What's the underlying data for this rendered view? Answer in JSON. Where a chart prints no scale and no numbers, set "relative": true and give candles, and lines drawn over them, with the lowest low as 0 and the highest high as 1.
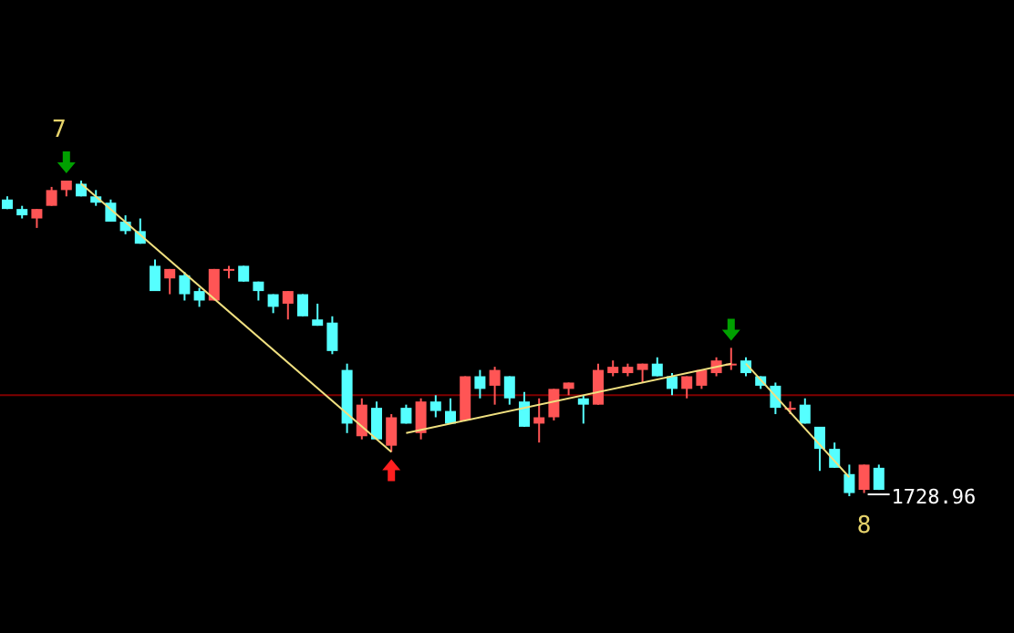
{
  "chart_data": {
    "type": "candlestick",
    "relative": true,
    "categories": [
      null,
      null,
      null,
      null,
      null,
      null,
      null,
      null,
      null,
      null,
      null,
      null,
      null,
      null,
      null,
      null,
      null,
      null,
      null,
      null,
      null,
      null,
      null,
      null,
      null,
      null,
      null,
      null,
      null,
      null,
      null,
      null,
      null,
      null,
      null,
      null,
      null,
      null,
      null,
      null,
      null,
      null,
      null,
      null,
      null,
      null,
      null,
      null,
      null,
      null,
      null,
      null,
      null,
      null,
      null,
      null,
      null,
      null,
      null,
      null
    ],
    "ohlc": [
      [
        0.94,
        0.95,
        0.91,
        0.91
      ],
      [
        0.91,
        0.92,
        0.88,
        0.89
      ],
      [
        0.88,
        0.91,
        0.85,
        0.91
      ],
      [
        0.92,
        0.98,
        0.92,
        0.97
      ],
      [
        0.97,
        1.0,
        0.95,
        1.0
      ],
      [
        0.99,
        1.0,
        0.95,
        0.95
      ],
      [
        0.95,
        0.97,
        0.92,
        0.93
      ],
      [
        0.93,
        0.94,
        0.87,
        0.87
      ],
      [
        0.87,
        0.89,
        0.83,
        0.84
      ],
      [
        0.84,
        0.88,
        0.8,
        0.8
      ],
      [
        0.73,
        0.75,
        0.65,
        0.65
      ],
      [
        0.69,
        0.72,
        0.64,
        0.72
      ],
      [
        0.7,
        0.71,
        0.62,
        0.64
      ],
      [
        0.65,
        0.66,
        0.6,
        0.62
      ],
      [
        0.62,
        0.72,
        0.62,
        0.72
      ],
      [
        0.72,
        0.73,
        0.69,
        0.72
      ],
      [
        0.73,
        0.73,
        0.68,
        0.68
      ],
      [
        0.68,
        0.68,
        0.62,
        0.65
      ],
      [
        0.64,
        0.64,
        0.58,
        0.6
      ],
      [
        0.61,
        0.65,
        0.56,
        0.65
      ],
      [
        0.64,
        0.64,
        0.57,
        0.57
      ],
      [
        0.56,
        0.61,
        0.54,
        0.54
      ],
      [
        0.55,
        0.57,
        0.45,
        0.46
      ],
      [
        0.4,
        0.42,
        0.2,
        0.23
      ],
      [
        0.19,
        0.31,
        0.18,
        0.29
      ],
      [
        0.28,
        0.3,
        0.18,
        0.18
      ],
      [
        0.16,
        0.26,
        0.14,
        0.25
      ],
      [
        0.28,
        0.29,
        0.23,
        0.23
      ],
      [
        0.2,
        0.31,
        0.18,
        0.3
      ],
      [
        0.3,
        0.32,
        0.25,
        0.27
      ],
      [
        0.27,
        0.31,
        0.23,
        0.23
      ],
      [
        0.24,
        0.38,
        0.24,
        0.38
      ],
      [
        0.38,
        0.4,
        0.31,
        0.34
      ],
      [
        0.35,
        0.41,
        0.29,
        0.4
      ],
      [
        0.38,
        0.38,
        0.29,
        0.31
      ],
      [
        0.3,
        0.33,
        0.22,
        0.22
      ],
      [
        0.23,
        0.31,
        0.17,
        0.25
      ],
      [
        0.25,
        0.34,
        0.24,
        0.34
      ],
      [
        0.34,
        0.36,
        0.32,
        0.36
      ],
      [
        0.31,
        0.32,
        0.23,
        0.29
      ],
      [
        0.29,
        0.42,
        0.29,
        0.4
      ],
      [
        0.39,
        0.43,
        0.38,
        0.41
      ],
      [
        0.39,
        0.42,
        0.38,
        0.41
      ],
      [
        0.4,
        0.42,
        0.36,
        0.42
      ],
      [
        0.42,
        0.44,
        0.38,
        0.38
      ],
      [
        0.38,
        0.39,
        0.32,
        0.34
      ],
      [
        0.34,
        0.38,
        0.31,
        0.38
      ],
      [
        0.35,
        0.4,
        0.34,
        0.4
      ],
      [
        0.39,
        0.44,
        0.38,
        0.43
      ],
      [
        0.42,
        0.47,
        0.4,
        0.42
      ],
      [
        0.43,
        0.44,
        0.38,
        0.39
      ],
      [
        0.38,
        0.38,
        0.34,
        0.35
      ],
      [
        0.35,
        0.36,
        0.26,
        0.28
      ],
      [
        0.28,
        0.3,
        0.26,
        0.28
      ],
      [
        0.29,
        0.31,
        0.23,
        0.23
      ],
      [
        0.22,
        0.22,
        0.08,
        0.15
      ],
      [
        0.15,
        0.17,
        0.09,
        0.09
      ],
      [
        0.07,
        0.1,
        0.0,
        0.01
      ],
      [
        0.02,
        0.1,
        0.01,
        0.1
      ],
      [
        0.09,
        0.1,
        0.02,
        0.02
      ]
    ],
    "colors": [
      "#55ffff",
      "#55ffff",
      "#ff5555",
      "#ff5555",
      "#ff5555",
      "#55ffff",
      "#55ffff",
      "#55ffff",
      "#55ffff",
      "#55ffff",
      "#55ffff",
      "#ff5555",
      "#55ffff",
      "#55ffff",
      "#ff5555",
      "#ff5555",
      "#55ffff",
      "#55ffff",
      "#55ffff",
      "#ff5555",
      "#55ffff",
      "#55ffff",
      "#55ffff",
      "#55ffff",
      "#ff5555",
      "#55ffff",
      "#ff5555",
      "#55ffff",
      "#ff5555",
      "#55ffff",
      "#55ffff",
      "#ff5555",
      "#55ffff",
      "#ff5555",
      "#55ffff",
      "#55ffff",
      "#ff5555",
      "#ff5555",
      "#ff5555",
      "#55ffff",
      "#ff5555",
      "#ff5555",
      "#ff5555",
      "#ff5555",
      "#55ffff",
      "#55ffff",
      "#ff5555",
      "#ff5555",
      "#ff5555",
      "#ff5555",
      "#55ffff",
      "#55ffff",
      "#55ffff",
      "#ff5555",
      "#55ffff",
      "#55ffff",
      "#55ffff",
      "#55ffff",
      "#ff5555",
      "#55ffff"
    ],
    "series": [
      {
        "type": "line",
        "color": "#f0e080",
        "values": [
          null,
          null,
          null,
          null,
          null,
          0.99,
          null,
          null,
          null,
          null,
          null,
          null,
          null,
          null,
          null,
          null,
          null,
          null,
          null,
          null,
          null,
          null,
          null,
          null,
          null,
          null,
          0.14,
          null,
          null,
          null,
          null,
          null,
          null,
          null,
          null,
          null,
          null,
          null,
          null,
          null,
          null,
          null,
          null,
          null,
          null,
          null,
          null,
          null,
          null,
          null,
          null,
          null,
          null,
          null,
          null,
          null,
          null,
          null,
          null,
          null
        ]
      },
      {
        "type": "line",
        "color": "#f0e080",
        "values": [
          null,
          null,
          null,
          null,
          null,
          null,
          null,
          null,
          null,
          null,
          null,
          null,
          null,
          null,
          null,
          null,
          null,
          null,
          null,
          null,
          null,
          null,
          null,
          null,
          null,
          null,
          null,
          0.2,
          null,
          null,
          null,
          null,
          null,
          null,
          null,
          null,
          null,
          null,
          null,
          null,
          null,
          null,
          null,
          null,
          null,
          null,
          null,
          null,
          null,
          0.42,
          null,
          null,
          null,
          null,
          null,
          null,
          null,
          null,
          null,
          null
        ]
      },
      {
        "type": "line",
        "color": "#f0e080",
        "values": [
          null,
          null,
          null,
          null,
          null,
          null,
          null,
          null,
          null,
          null,
          null,
          null,
          null,
          null,
          null,
          null,
          null,
          null,
          null,
          null,
          null,
          null,
          null,
          null,
          null,
          null,
          null,
          null,
          null,
          null,
          null,
          null,
          null,
          null,
          null,
          null,
          null,
          null,
          null,
          null,
          null,
          null,
          null,
          null,
          null,
          null,
          null,
          null,
          null,
          null,
          0.42,
          null,
          null,
          null,
          null,
          null,
          null,
          0.06,
          null,
          null
        ]
      }
    ],
    "ref_lines": [
      {
        "axis": "y",
        "value": 0.32,
        "color": "#800000"
      }
    ],
    "annotations": [
      "7",
      "8",
      "1728.96"
    ]
  }
}
